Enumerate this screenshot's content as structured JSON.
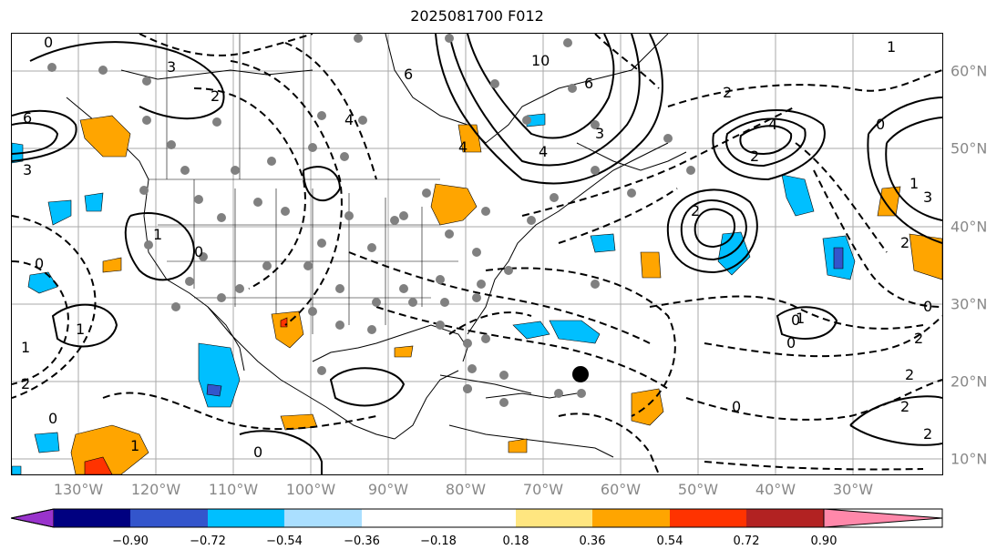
{
  "title": "2025081700 F012",
  "lon_labels": [
    "130°W",
    "120°W",
    "110°W",
    "100°W",
    "90°W",
    "80°W",
    "70°W",
    "60°W",
    "50°W",
    "40°W",
    "30°W"
  ],
  "lat_labels": [
    "60°N",
    "50°N",
    "40°N",
    "30°N",
    "20°N",
    "10°N"
  ],
  "colorbar": {
    "colors": [
      "#9933cc",
      "#000080",
      "#3355cc",
      "#00bfff",
      "#aadfff",
      "#ffffff",
      "#ffe680",
      "#ffa500",
      "#ff3300",
      "#b22222",
      "#ff88aa"
    ],
    "ticks": [
      "−0.90",
      "−0.72",
      "−0.54",
      "−0.36",
      "−0.18",
      "0.18",
      "0.36",
      "0.54",
      "0.72",
      "0.90"
    ]
  },
  "contour_labels": [
    "0",
    "3",
    "2",
    "6",
    "3",
    "1",
    "0",
    "0",
    "1",
    "1",
    "2",
    "4",
    "6",
    "10",
    "6",
    "3",
    "4",
    "1",
    "2",
    "4",
    "2",
    "0",
    "1",
    "3",
    "2",
    "2",
    "4",
    "0",
    "1",
    "0",
    "0",
    "2",
    "0",
    "0",
    "0",
    "2",
    "1",
    "2",
    "2"
  ]
}
